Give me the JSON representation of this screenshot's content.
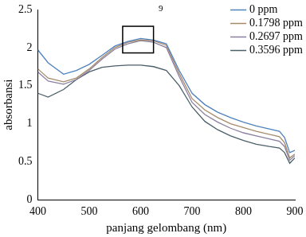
{
  "chart_data": {
    "type": "line",
    "x_label": "panjang gelombang (nm)",
    "y_label": "absorbansi",
    "x": [
      400,
      420,
      450,
      475,
      500,
      525,
      550,
      575,
      600,
      625,
      650,
      675,
      700,
      725,
      750,
      775,
      800,
      825,
      850,
      870,
      880,
      890,
      900
    ],
    "series": [
      {
        "name": "0 ppm",
        "color": "#4f81bd",
        "values": [
          1.97,
          1.8,
          1.65,
          1.7,
          1.78,
          1.9,
          2.02,
          2.08,
          2.12,
          2.1,
          2.05,
          1.7,
          1.4,
          1.25,
          1.15,
          1.08,
          1.02,
          0.97,
          0.93,
          0.9,
          0.82,
          0.62,
          0.65
        ]
      },
      {
        "name": "0.1798 ppm",
        "color": "#a68b6a",
        "values": [
          1.72,
          1.6,
          1.55,
          1.6,
          1.72,
          1.87,
          2.0,
          2.07,
          2.1,
          2.09,
          2.03,
          1.66,
          1.33,
          1.18,
          1.08,
          1.0,
          0.95,
          0.9,
          0.86,
          0.83,
          0.75,
          0.55,
          0.6
        ]
      },
      {
        "name": "0.2697 ppm",
        "color": "#8a7fa0",
        "values": [
          1.68,
          1.56,
          1.52,
          1.58,
          1.7,
          1.85,
          1.98,
          2.05,
          2.09,
          2.07,
          2.0,
          1.62,
          1.28,
          1.12,
          1.02,
          0.94,
          0.88,
          0.84,
          0.8,
          0.77,
          0.7,
          0.52,
          0.58
        ]
      },
      {
        "name": "0.3596 ppm",
        "color": "#4a5f6a",
        "values": [
          1.4,
          1.35,
          1.45,
          1.58,
          1.68,
          1.74,
          1.76,
          1.77,
          1.77,
          1.75,
          1.7,
          1.5,
          1.22,
          1.03,
          0.92,
          0.84,
          0.78,
          0.73,
          0.7,
          0.68,
          0.62,
          0.48,
          0.55
        ]
      }
    ],
    "xlim": [
      400,
      900
    ],
    "xticks": [
      400,
      500,
      600,
      700,
      800,
      900
    ],
    "ylim": [
      0,
      2.5
    ],
    "yticks": [
      0,
      0.5,
      1,
      1.5,
      2,
      2.5
    ],
    "grid": false,
    "legend": "upper right",
    "annotation": "9",
    "highlight": {
      "x": [
        565,
        625
      ],
      "y": [
        1.93,
        2.28
      ]
    }
  }
}
